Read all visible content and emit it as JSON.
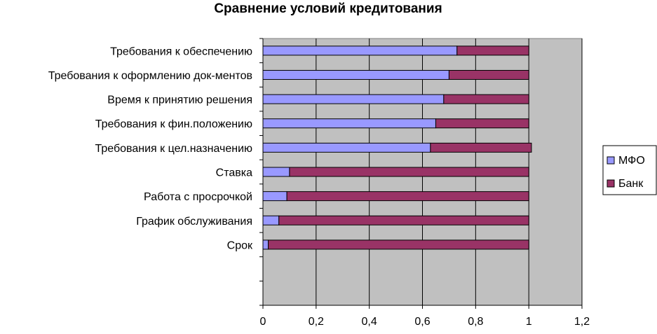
{
  "chart_data": {
    "type": "bar",
    "orientation": "horizontal",
    "stacked": true,
    "title": "Сравнение условий кредитования",
    "xlabel": "",
    "ylabel": "",
    "categories": [
      "Срок",
      "График обслуживания",
      "Работа с просрочкой",
      "Ставка",
      "Требования к цел.назначению",
      "Требования к фин.положению",
      "Время к принятию решения",
      "Требования к оформлению док-ментов",
      "Требования к обеспечению"
    ],
    "empty_slots_below": 2,
    "series": [
      {
        "name": "МФО",
        "color": "#9999ff",
        "values": [
          0.02,
          0.06,
          0.09,
          0.1,
          0.63,
          0.65,
          0.68,
          0.7,
          0.73
        ]
      },
      {
        "name": "Банк",
        "color": "#993366",
        "values": [
          0.98,
          0.94,
          0.91,
          0.9,
          0.38,
          0.35,
          0.32,
          0.3,
          0.27
        ]
      }
    ],
    "xlim": [
      0,
      1.2
    ],
    "xticks": [
      "0",
      "0,2",
      "0,4",
      "0,6",
      "0,8",
      "1",
      "1,2"
    ],
    "xtick_values": [
      0,
      0.2,
      0.4,
      0.6,
      0.8,
      1.0,
      1.2
    ],
    "grid": true,
    "plot_background": "#c0c0c0",
    "legend_position": "right"
  }
}
